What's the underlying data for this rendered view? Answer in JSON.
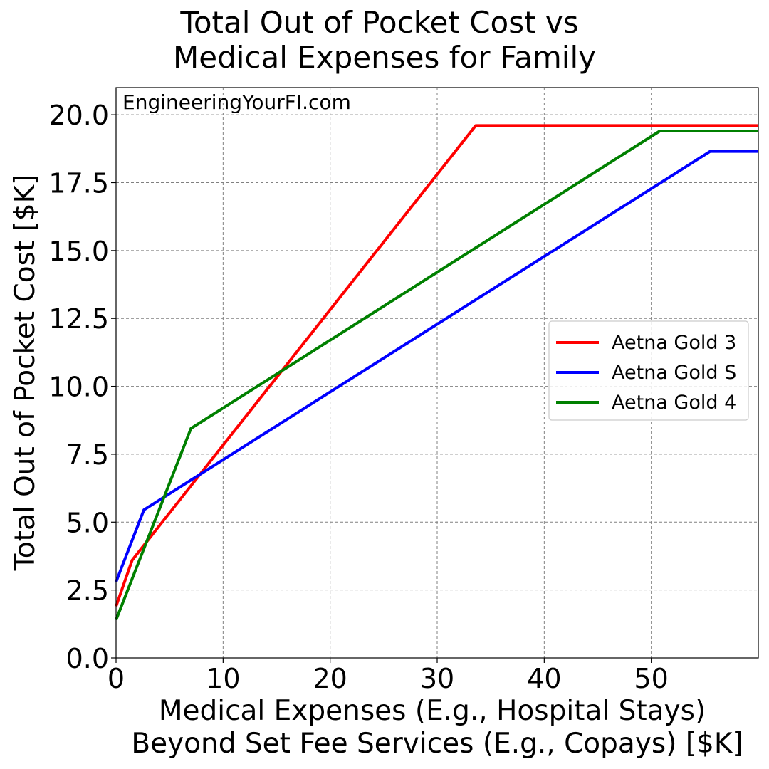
{
  "chart_data": {
    "type": "line",
    "title_line1": "Total Out of Pocket Cost vs",
    "title_line2": "Medical Expenses for Family",
    "xlabel_line1": "Medical Expenses (E.g., Hospital Stays)",
    "xlabel_line2": "Beyond Set Fee Services (E.g., Copays) [$K]",
    "ylabel": "Total Out of Pocket Cost [$K]",
    "annotation": "EngineeringYourFI.com",
    "xlim": [
      0,
      60
    ],
    "ylim": [
      0,
      21
    ],
    "x_ticks": [
      0,
      10,
      20,
      30,
      40,
      50
    ],
    "x_tick_labels": [
      "0",
      "10",
      "20",
      "30",
      "40",
      "50"
    ],
    "y_ticks": [
      0,
      2.5,
      5,
      7.5,
      10,
      12.5,
      15,
      17.5,
      20
    ],
    "y_tick_labels": [
      "0.0",
      "2.5",
      "5.0",
      "7.5",
      "10.0",
      "12.5",
      "15.0",
      "17.5",
      "20.0"
    ],
    "grid": true,
    "legend_position": "center-right",
    "series": [
      {
        "name": "Aetna Gold 3",
        "color": "#ff0000",
        "x": [
          0,
          1.5,
          33.6,
          60
        ],
        "y": [
          1.9,
          3.6,
          19.6,
          19.6
        ]
      },
      {
        "name": "Aetna Gold S",
        "color": "#0000ff",
        "x": [
          0,
          2.6,
          55.5,
          60
        ],
        "y": [
          2.8,
          5.45,
          18.65,
          18.65
        ]
      },
      {
        "name": "Aetna Gold 4",
        "color": "#008000",
        "x": [
          0,
          7.0,
          50.8,
          60
        ],
        "y": [
          1.4,
          8.45,
          19.4,
          19.4
        ]
      }
    ]
  }
}
